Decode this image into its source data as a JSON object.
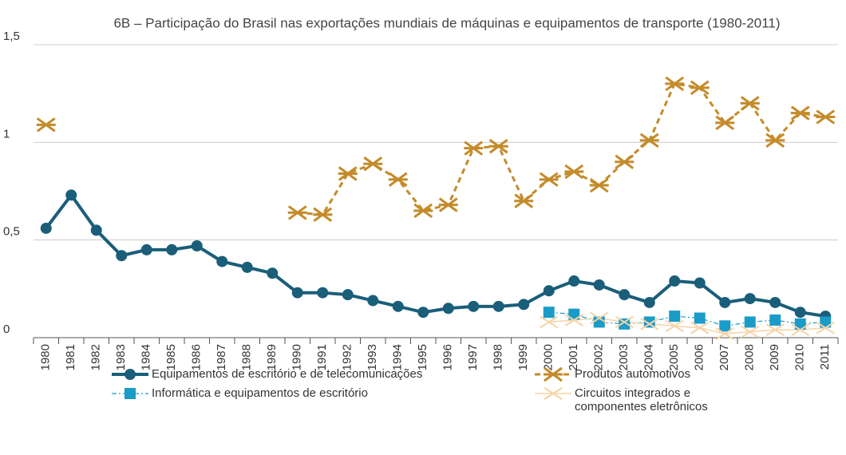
{
  "chart_data": {
    "type": "line",
    "title": "6B – Participação do Brasil nas exportações mundiais de máquinas e equipamentos de transporte (1980-2011)",
    "categories": [
      "1980",
      "1981",
      "1982",
      "1983",
      "1984",
      "1985",
      "1986",
      "1987",
      "1988",
      "1989",
      "1990",
      "1991",
      "1992",
      "1993",
      "1994",
      "1995",
      "1996",
      "1997",
      "1998",
      "1999",
      "2000",
      "2001",
      "2002",
      "2003",
      "2004",
      "2005",
      "2006",
      "2007",
      "2008",
      "2009",
      "2010",
      "2011"
    ],
    "ylim": [
      0,
      1.5
    ],
    "yticks": [
      0,
      {
        "value": 0.5,
        "label": "0,5"
      },
      1,
      {
        "value": 1.5,
        "label": "1,5"
      }
    ],
    "grid": true,
    "series": [
      {
        "name": "Equipamentos de escritório e de telecomunicações",
        "color": "#1a5e7a",
        "marker": "circle",
        "dash": "solid",
        "values": [
          0.56,
          0.73,
          0.55,
          0.42,
          0.45,
          0.45,
          0.47,
          0.39,
          0.36,
          0.33,
          0.23,
          0.23,
          0.22,
          0.19,
          0.16,
          0.13,
          0.15,
          0.16,
          0.16,
          0.17,
          0.24,
          0.29,
          0.27,
          0.22,
          0.18,
          0.29,
          0.28,
          0.18,
          0.2,
          0.18,
          0.13,
          0.11
        ]
      },
      {
        "name": "Produtos automotivos",
        "color": "#c48b2a",
        "marker": "asterisk",
        "dash": "dashed",
        "values": [
          1.09,
          null,
          null,
          null,
          null,
          null,
          null,
          null,
          null,
          null,
          0.64,
          0.63,
          0.84,
          0.89,
          0.81,
          0.65,
          0.68,
          0.97,
          0.98,
          0.7,
          0.81,
          0.85,
          0.78,
          0.9,
          1.01,
          1.3,
          1.28,
          1.1,
          1.2,
          1.01,
          1.15,
          1.13
        ]
      },
      {
        "name": "Informática e equipamentos de escritório",
        "color": "#1b9bc8",
        "marker": "square",
        "dash": "dashdot",
        "values": [
          null,
          null,
          null,
          null,
          null,
          null,
          null,
          null,
          null,
          null,
          null,
          null,
          null,
          null,
          null,
          null,
          null,
          null,
          null,
          null,
          0.13,
          0.12,
          0.08,
          0.07,
          0.08,
          0.11,
          0.1,
          0.06,
          0.08,
          0.09,
          0.07,
          0.08
        ]
      },
      {
        "name": "Circuitos integrados e componentes eletrônicos",
        "color": "#f5d3a6",
        "marker": "x",
        "dash": "thin",
        "values": [
          null,
          null,
          null,
          null,
          null,
          null,
          null,
          null,
          null,
          null,
          null,
          null,
          null,
          null,
          null,
          null,
          null,
          null,
          null,
          null,
          0.08,
          0.09,
          0.1,
          0.08,
          0.07,
          0.06,
          0.05,
          0.02,
          0.03,
          0.04,
          0.04,
          0.05
        ]
      }
    ]
  }
}
